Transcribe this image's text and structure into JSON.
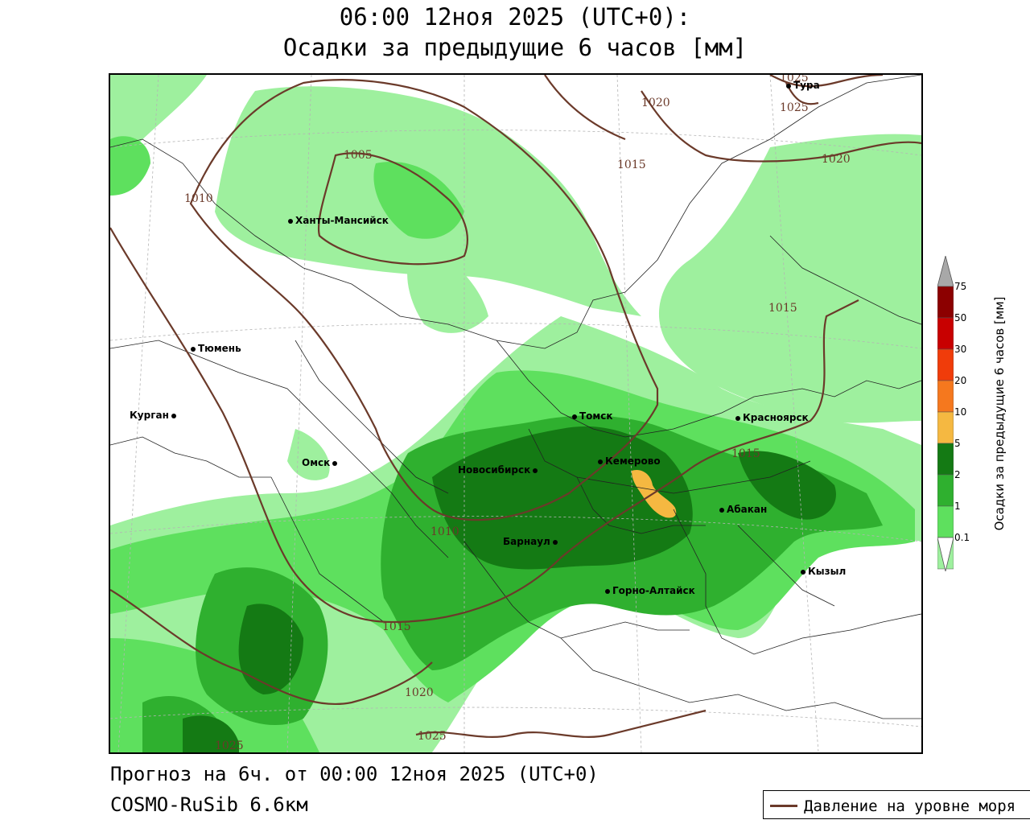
{
  "header": {
    "title_line1": "06:00 12ноя 2025 (UTC+0):",
    "title_line2": "Осадки за предыдущие 6 часов [мм]"
  },
  "map": {
    "cities": {
      "khanty": "Ханты-Мансийск",
      "tyumen": "Тюмень",
      "kurgan": "Курган",
      "omsk": "Омск",
      "novosibirsk": "Новосибирск",
      "tomsk": "Томск",
      "kemerovo": "Кемерово",
      "barnaul": "Барнаул",
      "krasnoyarsk": "Красноярск",
      "abakan": "Абакан",
      "kyzyl": "Кызыл",
      "gorno": "Горно-Алтайск",
      "tura": "Тура"
    },
    "isobars": {
      "l1005": "1005",
      "l1010a": "1010",
      "l1010b": "1010",
      "l1015a": "1015",
      "l1015b": "1015",
      "l1015c": "1015",
      "l1015d": "1015",
      "l1020a": "1020",
      "l1020b": "1020",
      "l1020c": "1020",
      "l1025a": "1025",
      "l1025b": "1025",
      "l1025c": "1025",
      "l1025d": "1025"
    },
    "colors": {
      "p01": "#9ef09e",
      "p1": "#5ee05e",
      "p2": "#2fb02f",
      "p5": "#147a14",
      "p10": "#f5b841",
      "p20": "#f5781e",
      "p30": "#f03c0a",
      "p50": "#c80000",
      "p75": "#8c0000",
      "isobar": "#6b3a2a"
    }
  },
  "legend": {
    "title": "Осадки за предыдущие 6 часов [мм]",
    "ticks": [
      "75",
      "50",
      "30",
      "20",
      "10",
      "5",
      "2",
      "1",
      "0.1"
    ]
  },
  "footer": {
    "forecast": "Прогноз на 6ч. от 00:00 12ноя 2025 (UTC+0)",
    "model": "COSMO-RuSib 6.6км",
    "line_legend": "Давление на уровне моря"
  }
}
